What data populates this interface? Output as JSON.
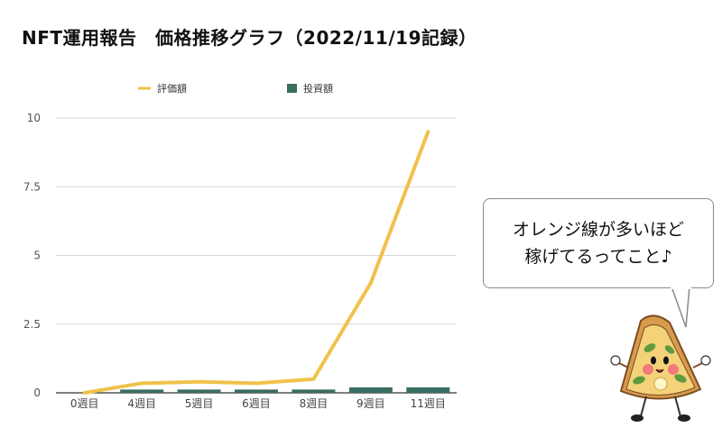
{
  "title": "NFT運用報告　価格推移グラフ（2022/11/19記録）",
  "chart_data": {
    "type": "bar",
    "categories": [
      "0週目",
      "4週目",
      "5週目",
      "6週目",
      "8週目",
      "9週目",
      "11週目"
    ],
    "series": [
      {
        "name": "評価額",
        "type": "line",
        "color": "#f0c24b",
        "values": [
          0,
          0.35,
          0.4,
          0.35,
          0.5,
          4.0,
          9.5
        ]
      },
      {
        "name": "投資額",
        "type": "bar",
        "color": "#3b6e63",
        "values": [
          0,
          0.12,
          0.12,
          0.12,
          0.12,
          0.2,
          0.2
        ]
      }
    ],
    "yticks": [
      "0",
      "2.5",
      "5",
      "7.5",
      "10"
    ],
    "ylim": [
      0,
      10
    ],
    "legend_position": "top",
    "grid": true
  },
  "bubble": {
    "line1": "オレンジ線が多いほど",
    "line2": "稼げてるってこと♪"
  }
}
